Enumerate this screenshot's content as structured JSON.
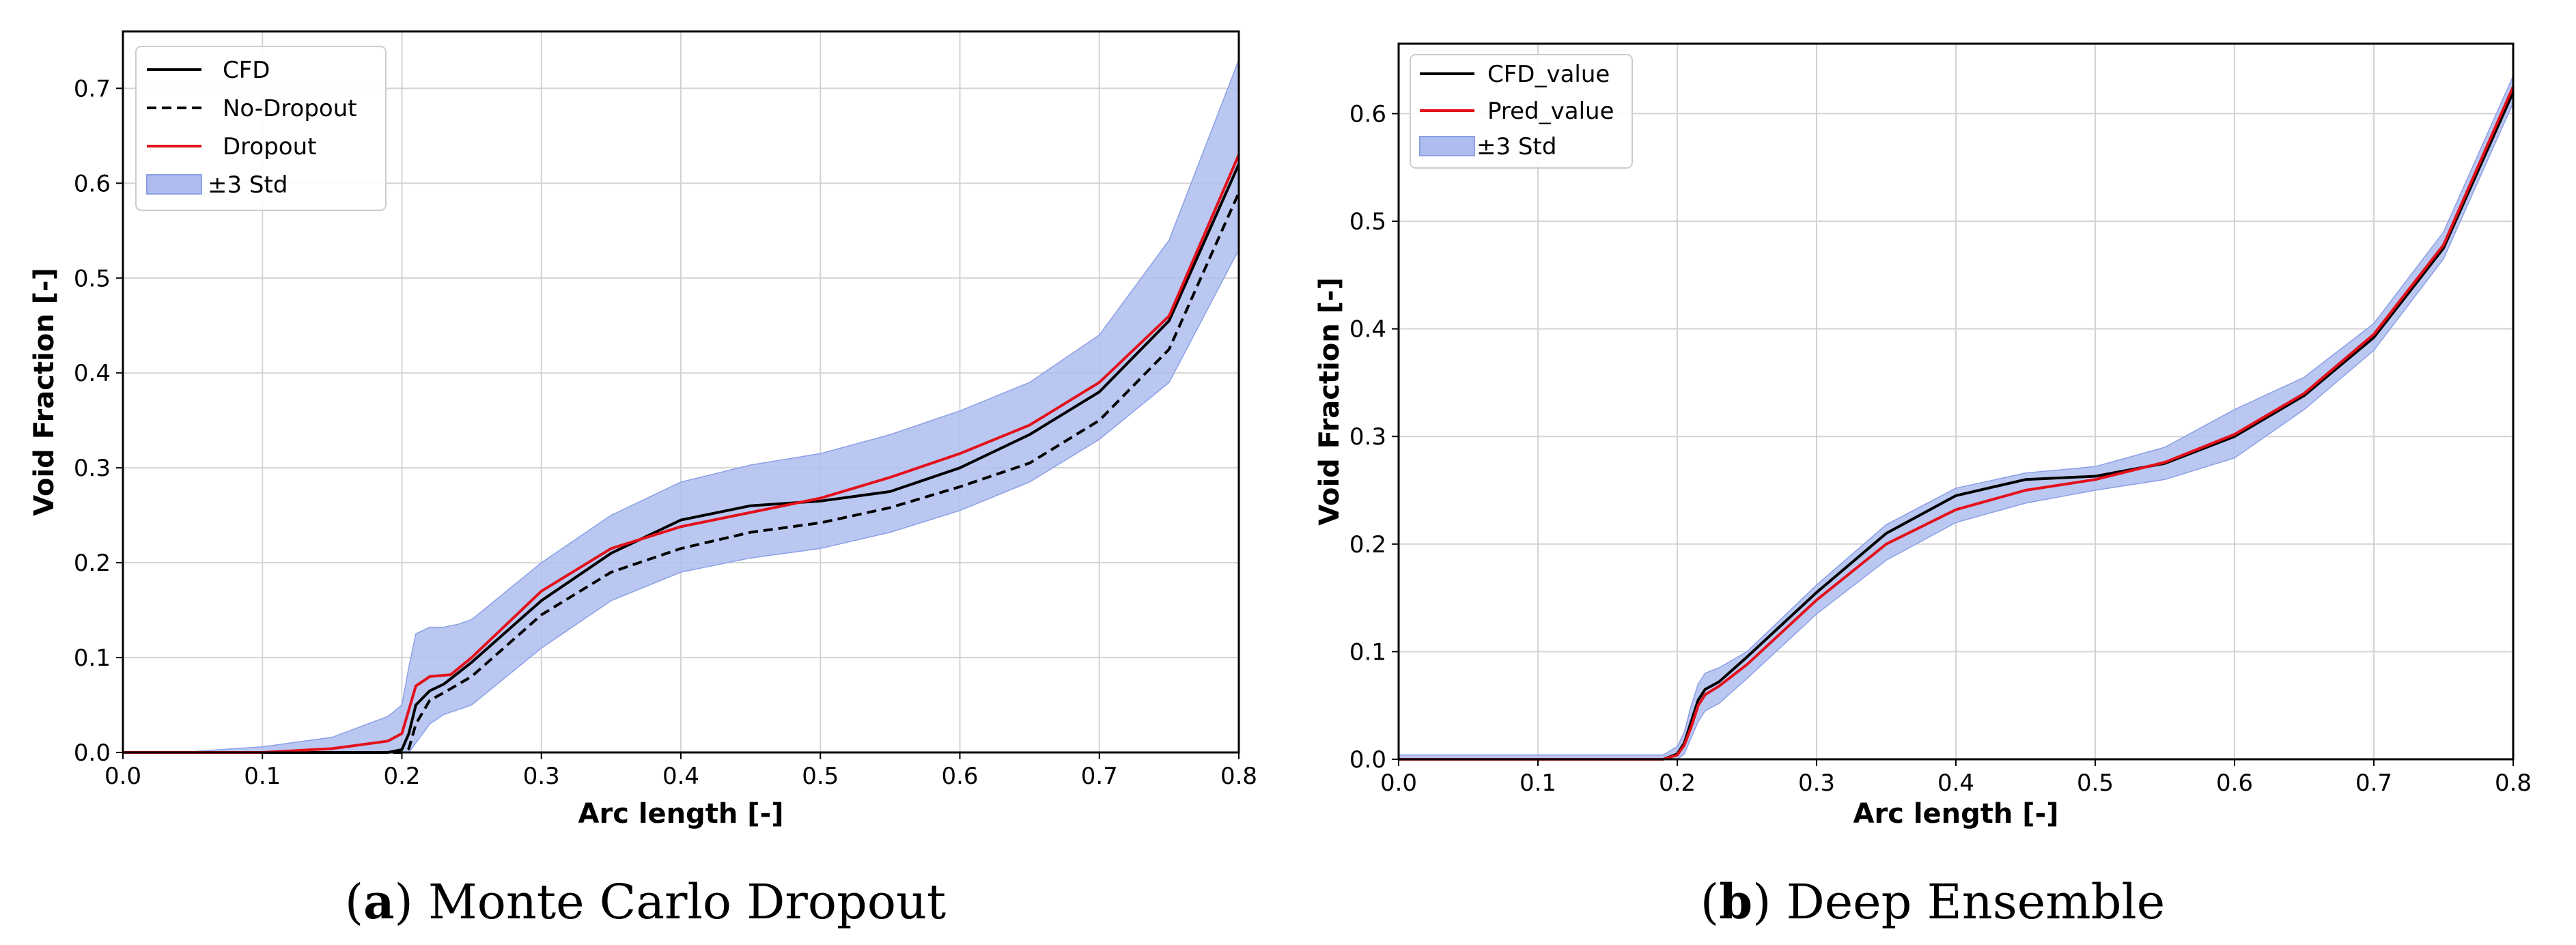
{
  "colors": {
    "cfd": "#000000",
    "dropout": "#e3101a",
    "band_fill": "#aebdee",
    "band_stroke": "#8c9fe6",
    "grid": "#d3d3d3"
  },
  "chart_data": [
    {
      "type": "line",
      "caption": {
        "label": "a",
        "open": "(",
        "close": ")",
        "text": " Monte Carlo Dropout"
      },
      "xlabel": "Arc length [-]",
      "ylabel": "Void Fraction [-]",
      "xlim": [
        0.0,
        0.8
      ],
      "ylim": [
        0.0,
        0.76
      ],
      "xticks": [
        0.0,
        0.1,
        0.2,
        0.3,
        0.4,
        0.5,
        0.6,
        0.7,
        0.8
      ],
      "xtick_labels": [
        "0.0",
        "0.1",
        "0.2",
        "0.3",
        "0.4",
        "0.5",
        "0.6",
        "0.7",
        "0.8"
      ],
      "yticks": [
        0.0,
        0.1,
        0.2,
        0.3,
        0.4,
        0.5,
        0.6,
        0.7
      ],
      "ytick_labels": [
        "0.0",
        "0.1",
        "0.2",
        "0.3",
        "0.4",
        "0.5",
        "0.6",
        "0.7"
      ],
      "grid": true,
      "legend_position": "top-left",
      "legend": [
        {
          "label": "CFD",
          "kind": "line",
          "color": "#000000",
          "dash": "solid"
        },
        {
          "label": "No-Dropout",
          "kind": "line",
          "color": "#000000",
          "dash": "dashed"
        },
        {
          "label": "Dropout",
          "kind": "line",
          "color": "#e3101a",
          "dash": "solid"
        },
        {
          "label": "±3 Std",
          "kind": "band",
          "color": "#aebdee"
        }
      ],
      "series": [
        {
          "name": "CFD",
          "color": "#000000",
          "dash": "solid",
          "points": [
            [
              0,
              0
            ],
            [
              0.19,
              0
            ],
            [
              0.2,
              0.003
            ],
            [
              0.205,
              0.02
            ],
            [
              0.21,
              0.05
            ],
            [
              0.22,
              0.065
            ],
            [
              0.23,
              0.072
            ],
            [
              0.25,
              0.095
            ],
            [
              0.3,
              0.16
            ],
            [
              0.35,
              0.21
            ],
            [
              0.4,
              0.245
            ],
            [
              0.45,
              0.26
            ],
            [
              0.5,
              0.265
            ],
            [
              0.55,
              0.275
            ],
            [
              0.6,
              0.3
            ],
            [
              0.65,
              0.335
            ],
            [
              0.7,
              0.38
            ],
            [
              0.75,
              0.455
            ],
            [
              0.8,
              0.62
            ]
          ]
        },
        {
          "name": "No-Dropout",
          "color": "#000000",
          "dash": "dashed",
          "points": [
            [
              0,
              0
            ],
            [
              0.2,
              0
            ],
            [
              0.205,
              0.004
            ],
            [
              0.21,
              0.03
            ],
            [
              0.22,
              0.055
            ],
            [
              0.23,
              0.063
            ],
            [
              0.25,
              0.08
            ],
            [
              0.3,
              0.145
            ],
            [
              0.35,
              0.19
            ],
            [
              0.4,
              0.215
            ],
            [
              0.45,
              0.232
            ],
            [
              0.5,
              0.242
            ],
            [
              0.55,
              0.258
            ],
            [
              0.6,
              0.28
            ],
            [
              0.65,
              0.305
            ],
            [
              0.7,
              0.35
            ],
            [
              0.75,
              0.425
            ],
            [
              0.8,
              0.59
            ]
          ]
        },
        {
          "name": "Dropout",
          "color": "#e3101a",
          "dash": "solid",
          "points": [
            [
              0,
              0
            ],
            [
              0.1,
              0.0
            ],
            [
              0.15,
              0.004
            ],
            [
              0.19,
              0.012
            ],
            [
              0.2,
              0.02
            ],
            [
              0.21,
              0.07
            ],
            [
              0.22,
              0.08
            ],
            [
              0.235,
              0.082
            ],
            [
              0.25,
              0.1
            ],
            [
              0.3,
              0.17
            ],
            [
              0.35,
              0.215
            ],
            [
              0.4,
              0.238
            ],
            [
              0.45,
              0.253
            ],
            [
              0.5,
              0.268
            ],
            [
              0.55,
              0.29
            ],
            [
              0.6,
              0.315
            ],
            [
              0.65,
              0.345
            ],
            [
              0.7,
              0.39
            ],
            [
              0.75,
              0.46
            ],
            [
              0.8,
              0.63
            ]
          ]
        }
      ],
      "band": {
        "name": "±3 Std",
        "color": "#aebdee",
        "x": [
          0,
          0.05,
          0.1,
          0.15,
          0.19,
          0.2,
          0.205,
          0.21,
          0.22,
          0.23,
          0.24,
          0.25,
          0.3,
          0.35,
          0.4,
          0.45,
          0.5,
          0.55,
          0.6,
          0.65,
          0.7,
          0.75,
          0.8
        ],
        "upper": [
          0,
          0.001,
          0.006,
          0.016,
          0.038,
          0.05,
          0.09,
          0.125,
          0.132,
          0.132,
          0.135,
          0.14,
          0.2,
          0.25,
          0.285,
          0.303,
          0.315,
          0.335,
          0.36,
          0.39,
          0.44,
          0.54,
          0.73
        ],
        "lower": [
          0,
          0,
          0,
          0,
          0,
          0,
          0,
          0.01,
          0.03,
          0.04,
          0.045,
          0.05,
          0.11,
          0.16,
          0.19,
          0.205,
          0.215,
          0.232,
          0.255,
          0.285,
          0.33,
          0.39,
          0.53
        ]
      }
    },
    {
      "type": "line",
      "caption": {
        "label": "b",
        "open": "(",
        "close": ")",
        "text": " Deep Ensemble"
      },
      "xlabel": "Arc length [-]",
      "ylabel": "Void Fraction [-]",
      "xlim": [
        0.0,
        0.8
      ],
      "ylim": [
        0.0,
        0.665
      ],
      "xticks": [
        0.0,
        0.1,
        0.2,
        0.3,
        0.4,
        0.5,
        0.6,
        0.7,
        0.8
      ],
      "xtick_labels": [
        "0.0",
        "0.1",
        "0.2",
        "0.3",
        "0.4",
        "0.5",
        "0.6",
        "0.7",
        "0.8"
      ],
      "yticks": [
        0.0,
        0.1,
        0.2,
        0.3,
        0.4,
        0.5,
        0.6
      ],
      "ytick_labels": [
        "0.0",
        "0.1",
        "0.2",
        "0.3",
        "0.4",
        "0.5",
        "0.6"
      ],
      "grid": true,
      "legend_position": "top-left",
      "legend": [
        {
          "label": "CFD_value",
          "kind": "line",
          "color": "#000000",
          "dash": "solid"
        },
        {
          "label": "Pred_value",
          "kind": "line",
          "color": "#e3101a",
          "dash": "solid"
        },
        {
          "label": "±3 Std",
          "kind": "band",
          "color": "#aebdee"
        }
      ],
      "series": [
        {
          "name": "CFD_value",
          "color": "#000000",
          "dash": "solid",
          "points": [
            [
              0,
              0
            ],
            [
              0.19,
              0
            ],
            [
              0.2,
              0.005
            ],
            [
              0.205,
              0.015
            ],
            [
              0.21,
              0.035
            ],
            [
              0.215,
              0.055
            ],
            [
              0.22,
              0.065
            ],
            [
              0.23,
              0.072
            ],
            [
              0.25,
              0.095
            ],
            [
              0.3,
              0.155
            ],
            [
              0.35,
              0.21
            ],
            [
              0.4,
              0.245
            ],
            [
              0.45,
              0.26
            ],
            [
              0.5,
              0.263
            ],
            [
              0.55,
              0.275
            ],
            [
              0.6,
              0.3
            ],
            [
              0.65,
              0.338
            ],
            [
              0.7,
              0.392
            ],
            [
              0.75,
              0.475
            ],
            [
              0.8,
              0.62
            ]
          ]
        },
        {
          "name": "Pred_value",
          "color": "#e3101a",
          "dash": "solid",
          "points": [
            [
              0,
              0
            ],
            [
              0.19,
              0
            ],
            [
              0.2,
              0.004
            ],
            [
              0.205,
              0.013
            ],
            [
              0.21,
              0.03
            ],
            [
              0.215,
              0.05
            ],
            [
              0.22,
              0.06
            ],
            [
              0.23,
              0.068
            ],
            [
              0.25,
              0.088
            ],
            [
              0.3,
              0.148
            ],
            [
              0.35,
              0.2
            ],
            [
              0.4,
              0.232
            ],
            [
              0.45,
              0.25
            ],
            [
              0.5,
              0.26
            ],
            [
              0.55,
              0.276
            ],
            [
              0.6,
              0.302
            ],
            [
              0.65,
              0.34
            ],
            [
              0.7,
              0.395
            ],
            [
              0.75,
              0.478
            ],
            [
              0.8,
              0.625
            ]
          ]
        }
      ],
      "band": {
        "name": "±3 Std",
        "color": "#aebdee",
        "x": [
          0,
          0.19,
          0.2,
          0.205,
          0.21,
          0.215,
          0.22,
          0.23,
          0.25,
          0.3,
          0.35,
          0.4,
          0.45,
          0.5,
          0.55,
          0.6,
          0.65,
          0.7,
          0.75,
          0.8
        ],
        "upper": [
          0.004,
          0.004,
          0.012,
          0.025,
          0.05,
          0.07,
          0.08,
          0.085,
          0.1,
          0.162,
          0.218,
          0.252,
          0.266,
          0.272,
          0.29,
          0.325,
          0.355,
          0.405,
          0.49,
          0.635
        ],
        "lower": [
          0,
          0,
          0,
          0.005,
          0.02,
          0.035,
          0.045,
          0.052,
          0.075,
          0.135,
          0.185,
          0.22,
          0.238,
          0.25,
          0.26,
          0.28,
          0.325,
          0.38,
          0.465,
          0.61
        ]
      }
    }
  ]
}
